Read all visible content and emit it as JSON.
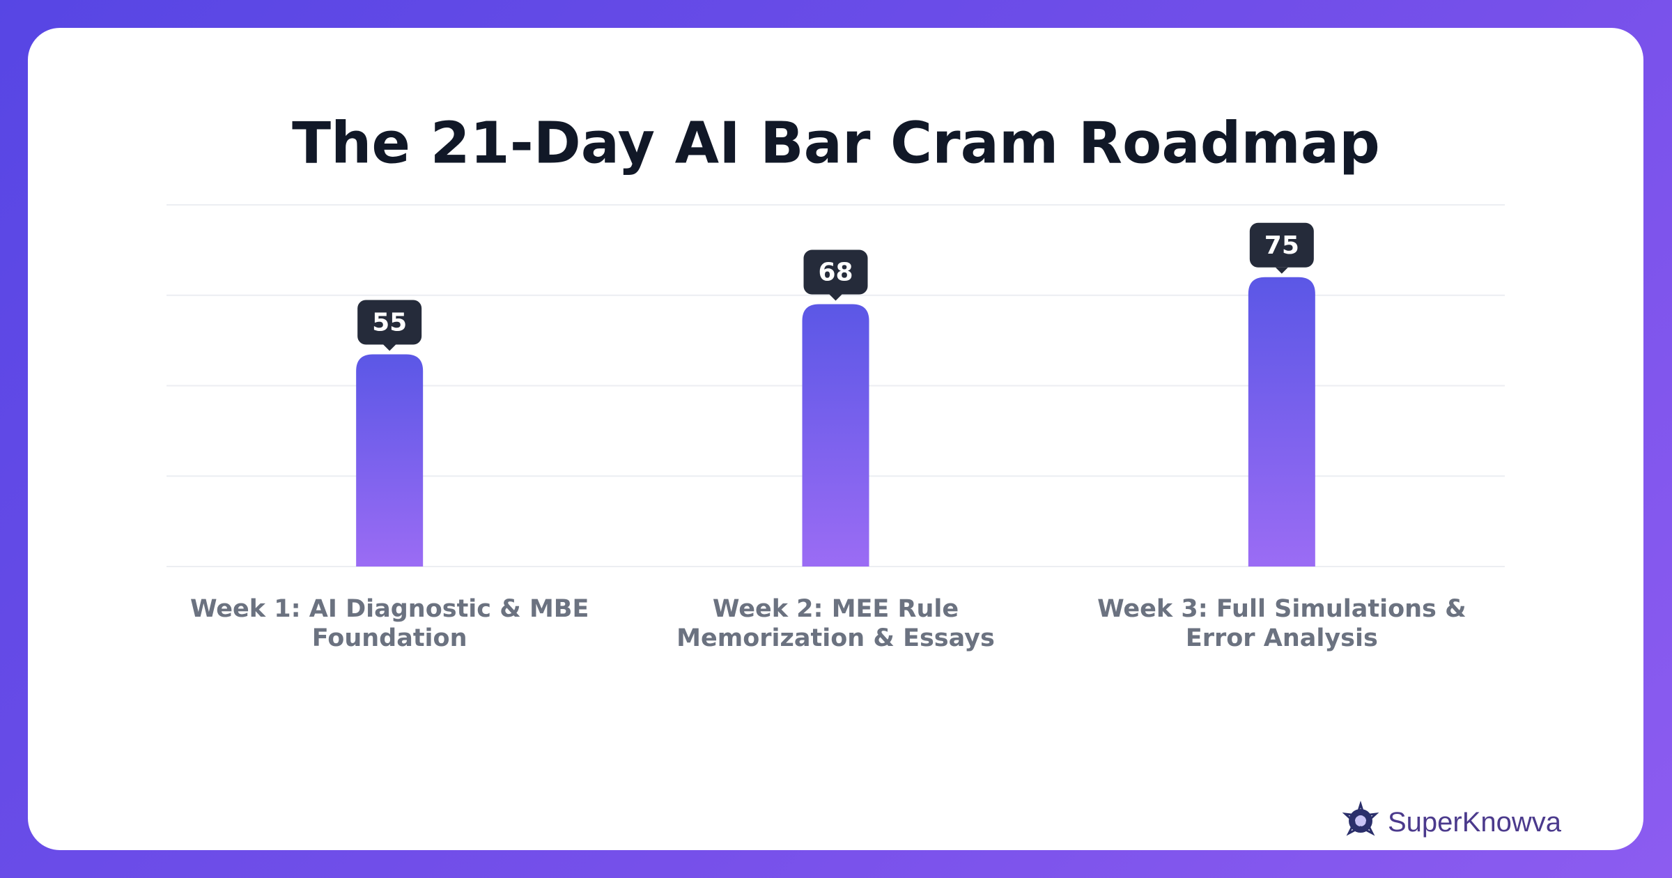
{
  "chart_data": {
    "type": "bar",
    "title": "The 21-Day AI Bar Cram Roadmap",
    "categories": [
      "Week 1: AI Diagnostic & MBE Foundation",
      "Week 2: MEE Rule Memorization & Essays",
      "Week 3: Full Simulations & Error Analysis"
    ],
    "values": [
      55,
      68,
      75
    ],
    "color": "#5b57e6",
    "ylim": [
      0,
      93.75
    ],
    "yticks": [
      0,
      23.4375,
      46.875,
      70.3125,
      93.75
    ],
    "grid": true
  },
  "brand": {
    "name": "SuperKnowva"
  }
}
